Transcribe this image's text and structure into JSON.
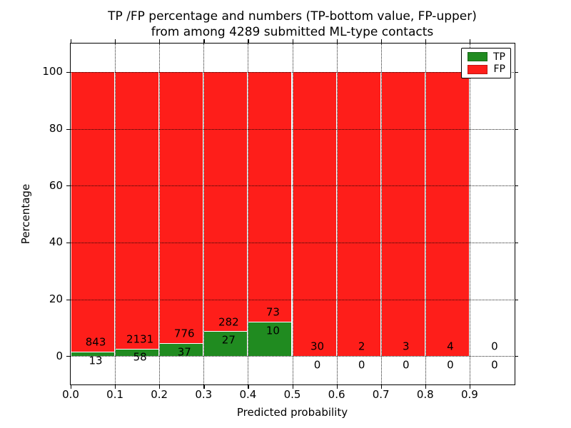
{
  "title": {
    "line1": "TP /FP percentage and numbers (TP-bottom value, FP-upper)",
    "line2": "from among 4289 submitted ML-type contacts"
  },
  "axes": {
    "xlabel": "Predicted probability",
    "ylabel": "Percentage",
    "xtick_labels": [
      "0.0",
      "0.1",
      "0.2",
      "0.3",
      "0.4",
      "0.5",
      "0.6",
      "0.7",
      "0.8",
      "0.9"
    ],
    "ytick_labels": [
      "0",
      "20",
      "40",
      "60",
      "80",
      "100"
    ]
  },
  "legend": {
    "items": [
      {
        "label": "TP",
        "color": "#208b20",
        "swatch": "tp-color-swatch"
      },
      {
        "label": "FP",
        "color": "#fe1e1a",
        "swatch": "fp-color-swatch"
      }
    ],
    "position": "upper right"
  },
  "colors": {
    "tp_green": "#208b20",
    "fp_red": "#fe1e1a",
    "bar_edge": "#ffffff",
    "grid": "#000000",
    "background": "#ffffff",
    "text": "#000000"
  },
  "chart_data": {
    "type": "bar",
    "stacked": true,
    "normalized": "each bar totals 100%",
    "title": "TP /FP percentage and numbers (TP-bottom value, FP-upper) from among 4289 submitted ML-type contacts",
    "xlabel": "Predicted probability",
    "ylabel": "Percentage",
    "xlim": [
      0.0,
      1.0
    ],
    "ylim": [
      -10,
      110
    ],
    "yticks": [
      0,
      20,
      40,
      60,
      80,
      100
    ],
    "xticks": [
      0.0,
      0.1,
      0.2,
      0.3,
      0.4,
      0.5,
      0.6,
      0.7,
      0.8,
      0.9
    ],
    "bin_width": 0.1,
    "bin_starts": [
      0.0,
      0.1,
      0.2,
      0.3,
      0.4,
      0.5,
      0.6,
      0.7,
      0.8,
      0.9
    ],
    "categories": [
      "0.0-0.1",
      "0.1-0.2",
      "0.2-0.3",
      "0.3-0.4",
      "0.4-0.5",
      "0.5-0.6",
      "0.6-0.7",
      "0.7-0.8",
      "0.8-0.9",
      "0.9-1.0"
    ],
    "series": [
      {
        "name": "TP",
        "color": "#208b20",
        "counts": [
          13,
          58,
          37,
          27,
          10,
          0,
          0,
          0,
          0,
          0
        ],
        "percent": [
          1.52,
          2.65,
          4.55,
          8.74,
          12.05,
          0,
          0,
          0,
          0,
          null
        ]
      },
      {
        "name": "FP",
        "color": "#fe1e1a",
        "counts": [
          843,
          2131,
          776,
          282,
          73,
          30,
          2,
          3,
          4,
          0
        ],
        "percent": [
          98.48,
          97.35,
          95.45,
          91.26,
          87.95,
          100,
          100,
          100,
          100,
          null
        ]
      }
    ],
    "total_contacts": 4289,
    "grid": {
      "style": "dotted",
      "horizontal": true,
      "vertical": true
    },
    "legend_position": "upper right"
  }
}
